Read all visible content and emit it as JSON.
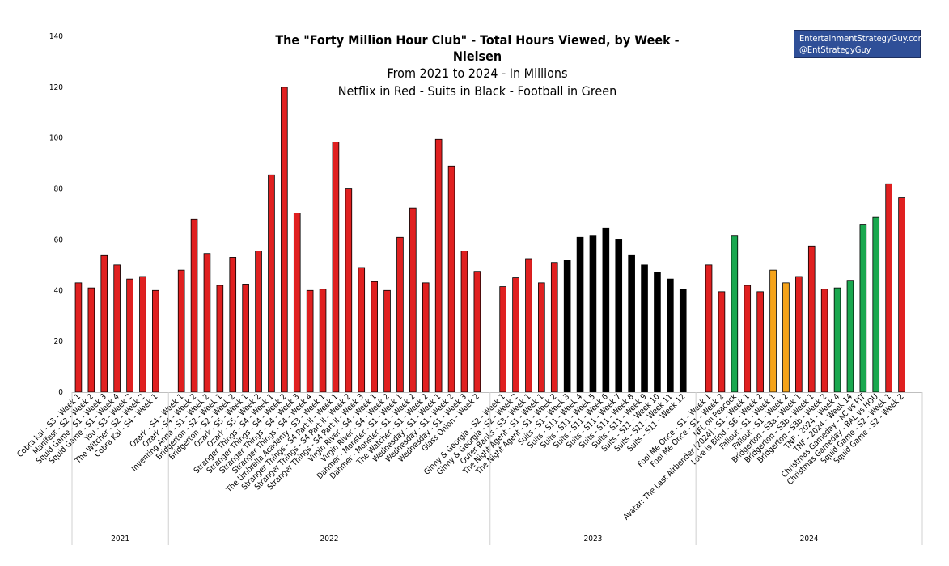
{
  "chart_data": {
    "type": "bar",
    "title": "The \"Forty Million Hour Club\" - Total Hours Viewed, by Week - Nielsen",
    "subtitle_lines": [
      "From 2021 to 2024 - In Millions",
      "Netflix in Red - Suits in Black - Football in Green"
    ],
    "ylim": [
      0,
      140
    ],
    "yticks": [
      "0",
      "20",
      "40",
      "60",
      "80",
      "100",
      "120",
      "140"
    ],
    "grid": false,
    "colors": {
      "red": "#e02020",
      "black": "#000000",
      "green": "#1aa84f",
      "orange": "#f5a31a"
    },
    "groups": [
      {
        "year": "2021",
        "bars": [
          {
            "label": "Cobra Kai - S3 - Week 1",
            "value": 43,
            "color": "red"
          },
          {
            "label": "Manifest - S2 - Week 2",
            "value": 41,
            "color": "red"
          },
          {
            "label": "Squid Game - S1 - Week 3",
            "value": 54,
            "color": "red"
          },
          {
            "label": "Squid Game - S1 - Week 4",
            "value": 50,
            "color": "red"
          },
          {
            "label": "You - S3 - Week 2",
            "value": 44.5,
            "color": "red"
          },
          {
            "label": "The Witcher - S2 - Week 2",
            "value": 45.5,
            "color": "red"
          },
          {
            "label": "Cobra Kai - S4 - Week 1",
            "value": 40,
            "color": "red"
          }
        ]
      },
      {
        "year": "2022",
        "bars": [
          {
            "label": "Ozark - S4 - Week 1",
            "value": 48,
            "color": "red"
          },
          {
            "label": "Ozark - S4 - Week 2",
            "value": 68,
            "color": "red"
          },
          {
            "label": "Inventing Anna - S1 - Week 2",
            "value": 54.5,
            "color": "red"
          },
          {
            "label": "Bridgerton - S2 - Week 1",
            "value": 42,
            "color": "red"
          },
          {
            "label": "Bridgerton - S2 - Week 2",
            "value": 53,
            "color": "red"
          },
          {
            "label": "Ozark - S5 - Week 1",
            "value": 42.5,
            "color": "red"
          },
          {
            "label": "Ozark - S5 - Week 2",
            "value": 55.5,
            "color": "red"
          },
          {
            "label": "Stranger Things - S4 - Week 1",
            "value": 85.5,
            "color": "red"
          },
          {
            "label": "Stranger Things - S4 - Week 2",
            "value": 120,
            "color": "red"
          },
          {
            "label": "Stranger Things - S4 - Week 3",
            "value": 70.5,
            "color": "red"
          },
          {
            "label": "Stranger Things - S4 - Week 4",
            "value": 40,
            "color": "red"
          },
          {
            "label": "The Umbrella Academy - S3 - Week 1",
            "value": 40.5,
            "color": "red"
          },
          {
            "label": "Stranger Things - S4 Part II - Week 1",
            "value": 98.5,
            "color": "red"
          },
          {
            "label": "Stranger Things - S4 Part II - Week 2",
            "value": 80,
            "color": "red"
          },
          {
            "label": "Stranger Things - S4 Part II - Week 3",
            "value": 49,
            "color": "red"
          },
          {
            "label": "Virgin River - S4 - Week 1",
            "value": 43.5,
            "color": "red"
          },
          {
            "label": "Virgin River - S4 - Week 2",
            "value": 40,
            "color": "red"
          },
          {
            "label": "Dahmer - Monster - S1 - Week 1",
            "value": 61,
            "color": "red"
          },
          {
            "label": "Dahmer - Monster - S1 - Week 2",
            "value": 72.5,
            "color": "red"
          },
          {
            "label": "The Watcher - S1 - Week 2",
            "value": 43,
            "color": "red"
          },
          {
            "label": "Wednesday - S1 - Week 1",
            "value": 99.5,
            "color": "red"
          },
          {
            "label": "Wednesday - S1 - Week 2",
            "value": 89,
            "color": "red"
          },
          {
            "label": "Wednesday - S1 - Week 3",
            "value": 55.5,
            "color": "red"
          },
          {
            "label": "Glass Onion - Week 2",
            "value": 47.5,
            "color": "red"
          }
        ]
      },
      {
        "year": "2023",
        "bars": [
          {
            "label": "Ginny & Georgia - S2 - Week 1",
            "value": 41.5,
            "color": "red"
          },
          {
            "label": "Ginny & Georgia - S2 - Week 2",
            "value": 45,
            "color": "red"
          },
          {
            "label": "Outer Banks - S3 - Week 1",
            "value": 52.5,
            "color": "red"
          },
          {
            "label": "The Night Agent - S1 - Week 1",
            "value": 43,
            "color": "red"
          },
          {
            "label": "The Night Agent - S1 - Week 2",
            "value": 51,
            "color": "red"
          },
          {
            "label": "Suits - S1 - Week 3",
            "value": 52,
            "color": "black"
          },
          {
            "label": "Suits - S11 - Week 4",
            "value": 61,
            "color": "black"
          },
          {
            "label": "Suits - S11 - Week 5",
            "value": 61.5,
            "color": "black"
          },
          {
            "label": "Suits - S11 - Week 6",
            "value": 64.5,
            "color": "black"
          },
          {
            "label": "Suits - S11 - Week 7",
            "value": 60,
            "color": "black"
          },
          {
            "label": "Suits - S11 - Week 8",
            "value": 54,
            "color": "black"
          },
          {
            "label": "Suits - S11 - Week 9",
            "value": 50,
            "color": "black"
          },
          {
            "label": "Suits - S11 - Week 10",
            "value": 47,
            "color": "black"
          },
          {
            "label": "Suits - S11 - Week 11",
            "value": 44.5,
            "color": "black"
          },
          {
            "label": "Suits - S11 - Week 12",
            "value": 40.5,
            "color": "black"
          }
        ]
      },
      {
        "year": "2024",
        "bars": [
          {
            "label": "Fool Me Once - S1 - Week 1",
            "value": 50,
            "color": "red"
          },
          {
            "label": "Fool Me Once - S1 - Week 2",
            "value": 39.5,
            "color": "red"
          },
          {
            "label": "NFL on Peacock",
            "value": 61.5,
            "color": "green"
          },
          {
            "label": "Avatar: The Last Airbender (2024) - S1 - Week 1",
            "value": 42,
            "color": "red"
          },
          {
            "label": "Love is Blind - S6 - Week 2",
            "value": 39.5,
            "color": "red"
          },
          {
            "label": "Fallout - S1 - Week 1",
            "value": 48,
            "color": "orange"
          },
          {
            "label": "Fallout - S1 - Week 2",
            "value": 43,
            "color": "orange"
          },
          {
            "label": "Bridgerton - S3a - Week 1",
            "value": 45.5,
            "color": "red"
          },
          {
            "label": "Bridgerton - S3b - Week 1",
            "value": 57.5,
            "color": "red"
          },
          {
            "label": "Bridgerton - S3b - Week 2",
            "value": 40.5,
            "color": "red"
          },
          {
            "label": "TNF - 2024 - Week 4",
            "value": 41,
            "color": "green"
          },
          {
            "label": "TNF - 2024 - Week 14",
            "value": 44,
            "color": "green"
          },
          {
            "label": "Christmas Gameday - KC vs PIT",
            "value": 66,
            "color": "green"
          },
          {
            "label": "Christmas Gameday - BAL vs HOU",
            "value": 69,
            "color": "green"
          },
          {
            "label": "Squid Game - S2 - Week 1",
            "value": 82,
            "color": "red"
          },
          {
            "label": "Squid Game - S2 - Week 2",
            "value": 76.5,
            "color": "red"
          }
        ]
      }
    ]
  },
  "credit": {
    "line1": "EntertainmentStrategyGuy.com",
    "line2": "@EntStrategyGuy"
  }
}
